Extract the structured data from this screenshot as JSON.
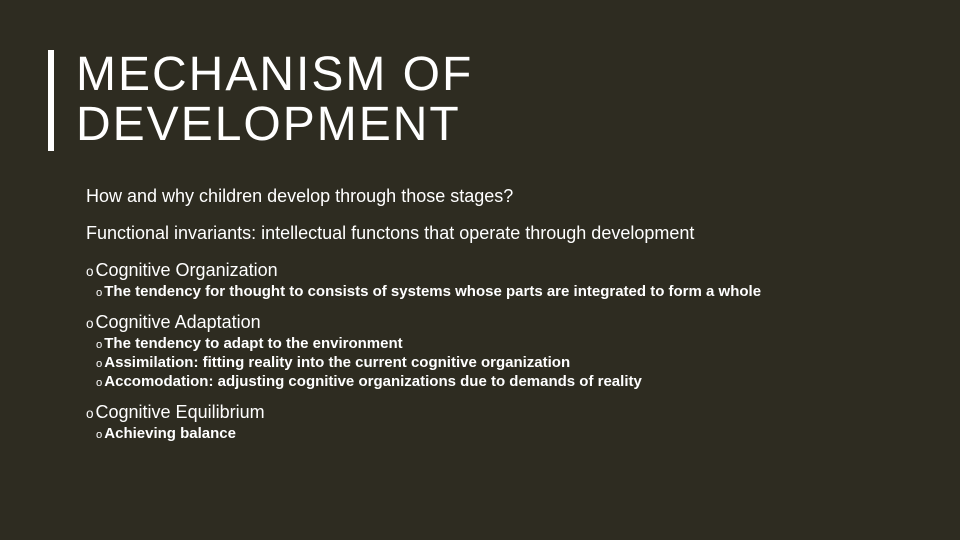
{
  "title_line1": "MECHANISM OF",
  "title_line2": "DEVELOPMENT",
  "intro1": "How and why children develop through those stages?",
  "intro2": "Functional invariants: intellectual functons that operate through development",
  "sections": {
    "s1": {
      "heading": "Cognitive Organization",
      "items": {
        "i0": "The tendency for thought to consists of systems whose parts are integrated to form a whole"
      }
    },
    "s2": {
      "heading": "Cognitive Adaptation",
      "items": {
        "i0": "The tendency to adapt to the environment",
        "i1": "Assimilation: fitting reality into the current cognitive organization",
        "i2": "Accomodation: adjusting cognitive organizations due to demands of reality"
      }
    },
    "s3": {
      "heading": "Cognitive Equilibrium",
      "items": {
        "i0": "Achieving balance"
      }
    }
  },
  "colors": {
    "background": "#2e2c21",
    "text": "#ffffff",
    "accent_bar": "#ffffff"
  }
}
